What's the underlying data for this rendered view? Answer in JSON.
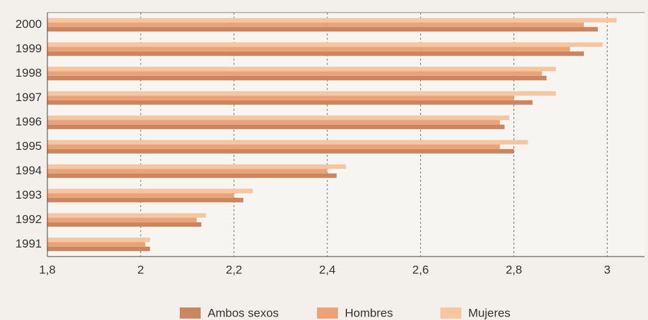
{
  "chart_data": {
    "type": "bar",
    "orientation": "horizontal",
    "categories": [
      "2000",
      "1999",
      "1998",
      "1997",
      "1996",
      "1995",
      "1994",
      "1993",
      "1992",
      "1991"
    ],
    "series": [
      {
        "name": "Mujeres",
        "color": "#f5c6a0",
        "values": [
          3.02,
          2.99,
          2.89,
          2.89,
          2.79,
          2.83,
          2.44,
          2.24,
          2.14,
          2.02
        ]
      },
      {
        "name": "Hombres",
        "color": "#eba276",
        "values": [
          2.95,
          2.92,
          2.86,
          2.8,
          2.77,
          2.77,
          2.4,
          2.2,
          2.12,
          2.01
        ]
      },
      {
        "name": "Ambos sexos",
        "color": "#c98660",
        "values": [
          2.98,
          2.95,
          2.87,
          2.84,
          2.78,
          2.8,
          2.42,
          2.22,
          2.13,
          2.02
        ]
      }
    ],
    "xlim": [
      1.8,
      3.08
    ],
    "xticks": [
      {
        "value": 1.8,
        "label": "1,8"
      },
      2,
      {
        "value": 2.2,
        "label": "2,2"
      },
      {
        "value": 2.4,
        "label": "2,4"
      },
      {
        "value": 2.6,
        "label": "2,6"
      },
      {
        "value": 2.8,
        "label": "2,8"
      },
      3
    ],
    "grid": true,
    "legend": "bottom"
  }
}
